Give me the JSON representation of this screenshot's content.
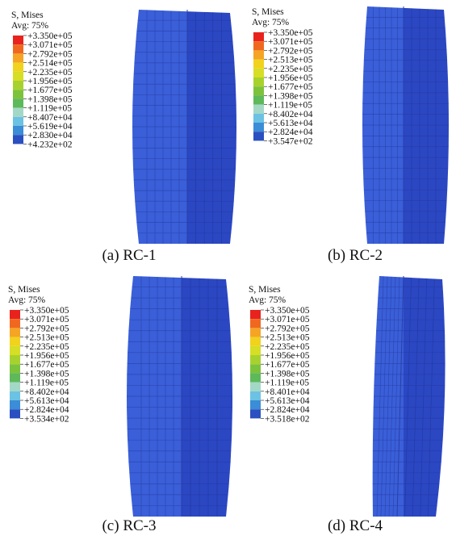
{
  "panels": [
    {
      "legend_title": "S, Mises",
      "legend_subtitle": "Avg: 75%",
      "caption": "(a) RC-1",
      "labels": [
        "+3.350e+05",
        "+3.071e+05",
        "+2.792e+05",
        "+2.514e+05",
        "+2.235e+05",
        "+1.956e+05",
        "+1.677e+05",
        "+1.398e+05",
        "+1.119e+05",
        "+8.407e+04",
        "+5.619e+04",
        "+2.830e+04",
        "+4.232e+02"
      ]
    },
    {
      "legend_title": "S, Mises",
      "legend_subtitle": "Avg: 75%",
      "caption": "(b) RC-2",
      "labels": [
        "+3.350e+05",
        "+3.071e+05",
        "+2.792e+05",
        "+2.513e+05",
        "+2.235e+05",
        "+1.956e+05",
        "+1.677e+05",
        "+1.398e+05",
        "+1.119e+05",
        "+8.402e+04",
        "+5.613e+04",
        "+2.824e+04",
        "+3.547e+02"
      ]
    },
    {
      "legend_title": "S, Mises",
      "legend_subtitle": "Avg: 75%",
      "caption": "(c) RC-3",
      "labels": [
        "+3.350e+05",
        "+3.071e+05",
        "+2.792e+05",
        "+2.513e+05",
        "+2.235e+05",
        "+1.956e+05",
        "+1.677e+05",
        "+1.398e+05",
        "+1.119e+05",
        "+8.402e+04",
        "+5.613e+04",
        "+2.824e+04",
        "+3.534e+02"
      ]
    },
    {
      "legend_title": "S, Mises",
      "legend_subtitle": "Avg: 75%",
      "caption": "(d) RC-4",
      "labels": [
        "+3.350e+05",
        "+3.071e+05",
        "+2.792e+05",
        "+2.513e+05",
        "+2.235e+05",
        "+1.956e+05",
        "+1.677e+05",
        "+1.398e+05",
        "+1.119e+05",
        "+8.401e+04",
        "+5.613e+04",
        "+2.824e+04",
        "+3.518e+02"
      ]
    }
  ]
}
